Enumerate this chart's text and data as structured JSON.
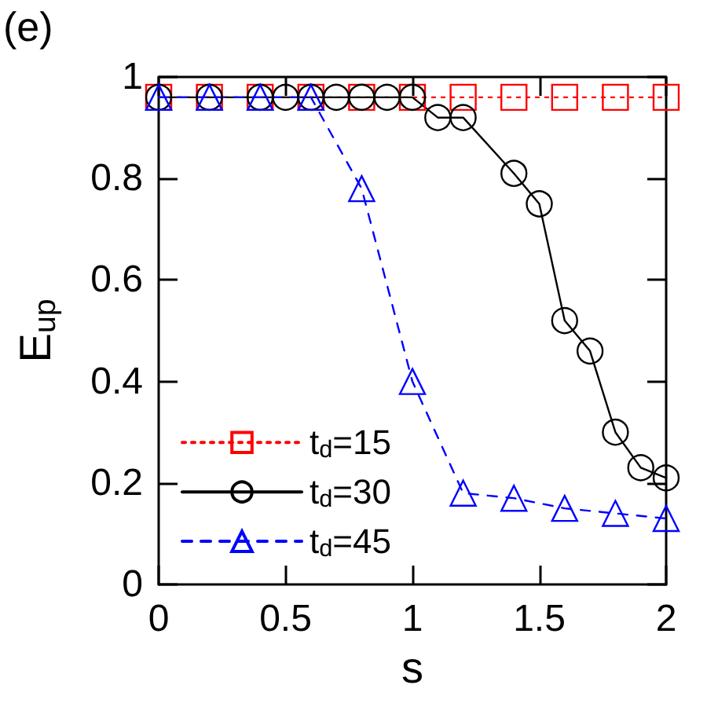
{
  "chart_data": {
    "type": "line",
    "xlabel": "s",
    "ylabel": "E$_{up}$",
    "annotations": [
      "(e)"
    ],
    "xlim": [
      0,
      2
    ],
    "xticks": [
      0,
      0.5,
      1,
      1.5,
      2
    ],
    "ylim": [
      0,
      1
    ],
    "yticks": [
      0,
      0.2,
      0.4,
      0.6,
      0.8,
      1
    ],
    "grid": false,
    "legend": "bottom left",
    "series": [
      {
        "name": "t$_{d}$=15",
        "color": "#ff0000",
        "marker": "square",
        "line_style": "dotted",
        "x": [
          0,
          0.2,
          0.4,
          0.6,
          0.8,
          1.0,
          1.2,
          1.4,
          1.6,
          1.8,
          2.0
        ],
        "values": [
          0.96,
          0.96,
          0.96,
          0.96,
          0.96,
          0.96,
          0.96,
          0.96,
          0.96,
          0.96,
          0.96
        ]
      },
      {
        "name": "t$_{d}$=30",
        "color": "#000000",
        "marker": "circle",
        "line_style": "solid",
        "x": [
          0,
          0.2,
          0.4,
          0.5,
          0.6,
          0.7,
          0.8,
          0.9,
          1.0,
          1.1,
          1.2,
          1.4,
          1.5,
          1.6,
          1.7,
          1.8,
          1.9,
          2.0
        ],
        "values": [
          0.96,
          0.96,
          0.96,
          0.96,
          0.96,
          0.96,
          0.96,
          0.96,
          0.96,
          0.92,
          0.92,
          0.81,
          0.75,
          0.52,
          0.46,
          0.3,
          0.23,
          0.21
        ]
      },
      {
        "name": "t$_{d}$=45",
        "color": "#0000ff",
        "marker": "triangle",
        "line_style": "dashed",
        "x": [
          0,
          0.2,
          0.4,
          0.6,
          0.8,
          1.0,
          1.2,
          1.4,
          1.6,
          1.8,
          2.0
        ],
        "values": [
          0.96,
          0.96,
          0.96,
          0.96,
          0.78,
          0.4,
          0.18,
          0.17,
          0.15,
          0.14,
          0.13
        ]
      }
    ]
  }
}
